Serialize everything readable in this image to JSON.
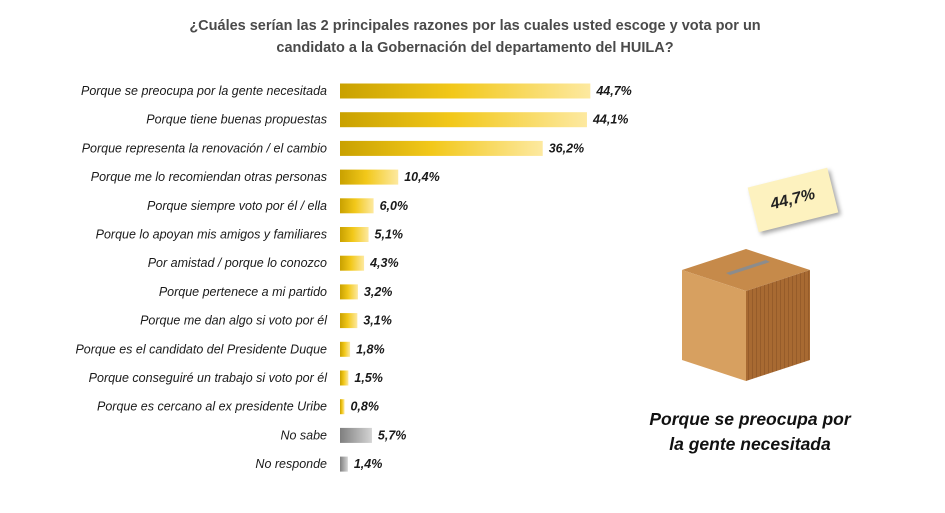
{
  "title": {
    "line1": "¿Cuáles serían las 2 principales razones por las cuales usted escoge y vota por un",
    "line2": "candidato a la Gobernación del departamento del HUILA?"
  },
  "chart_data": {
    "type": "bar",
    "orientation": "horizontal",
    "categories": [
      "Porque se preocupa por la gente necesitada",
      "Porque tiene buenas propuestas",
      "Porque representa la renovación / el cambio",
      "Porque me lo recomiendan otras personas",
      "Porque siempre voto por él / ella",
      "Porque lo apoyan mis amigos y familiares",
      "Por amistad / porque lo conozco",
      "Porque pertenece a mi partido",
      "Porque me dan algo si voto por él",
      "Porque es el candidato del Presidente Duque",
      "Porque conseguiré un trabajo si voto por él",
      "Porque es cercano al ex presidente Uribe",
      "No sabe",
      "No responde"
    ],
    "values": [
      44.7,
      44.1,
      36.2,
      10.4,
      6.0,
      5.1,
      4.3,
      3.2,
      3.1,
      1.8,
      1.5,
      0.8,
      5.7,
      1.4
    ],
    "value_labels": [
      "44,7%",
      "44,1%",
      "36,2%",
      "10,4%",
      "6,0%",
      "5,1%",
      "4,3%",
      "3,2%",
      "3,1%",
      "1,8%",
      "1,5%",
      "0,8%",
      "5,7%",
      "1,4%"
    ],
    "bar_colors": [
      "gold",
      "gold",
      "gold",
      "gold",
      "gold",
      "gold",
      "gold",
      "gold",
      "gold",
      "gold",
      "gold",
      "gold",
      "gray",
      "gray"
    ],
    "colors": {
      "gold_dark": "#c9a100",
      "gold_mid": "#f2c81a",
      "gold_light": "#fde9a0",
      "gray_dark": "#7f7f7f",
      "gray_light": "#d4d4d4"
    },
    "xlim": [
      0,
      50
    ],
    "grid": false,
    "legend": "none"
  },
  "highlight": {
    "note_value": "44,7%",
    "caption_line1": "Porque se preocupa por",
    "caption_line2": "la gente necesitada",
    "icon": "ballot-box-icon",
    "box_colors": {
      "top": "#c68a4a",
      "front": "#d7a060",
      "side": "#a86a32",
      "slot": "#8c8c8c"
    }
  }
}
